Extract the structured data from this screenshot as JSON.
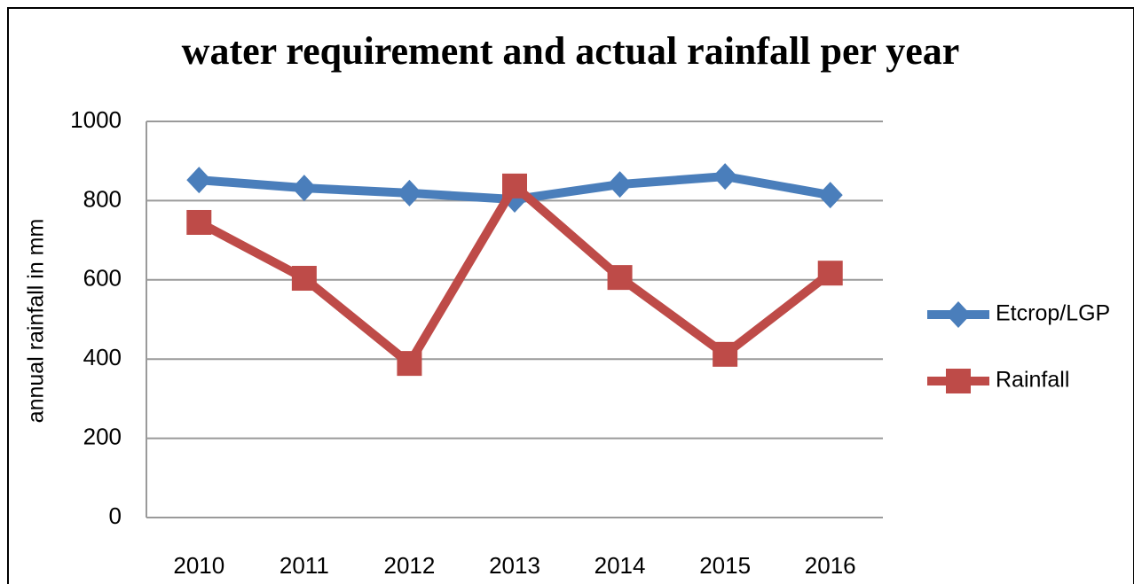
{
  "chart_data": {
    "type": "line",
    "title": "water requirement and actual rainfall per year",
    "y_label": "annual rainfall in mm",
    "categories": [
      "2010",
      "2011",
      "2012",
      "2013",
      "2014",
      "2015",
      "2016"
    ],
    "series": [
      {
        "name": "Etcrop/LGP",
        "color": "#4a7ebb",
        "marker": "diamond",
        "values": [
          852,
          832,
          819,
          803,
          841,
          861,
          814
        ]
      },
      {
        "name": "Rainfall",
        "color": "#be4b48",
        "marker": "square",
        "values": [
          745,
          604,
          389,
          837,
          606,
          412,
          617
        ]
      }
    ],
    "ylim": [
      0,
      1000
    ],
    "yticks": [
      0,
      200,
      400,
      600,
      800,
      1000
    ],
    "grid": true,
    "legend": "right"
  }
}
